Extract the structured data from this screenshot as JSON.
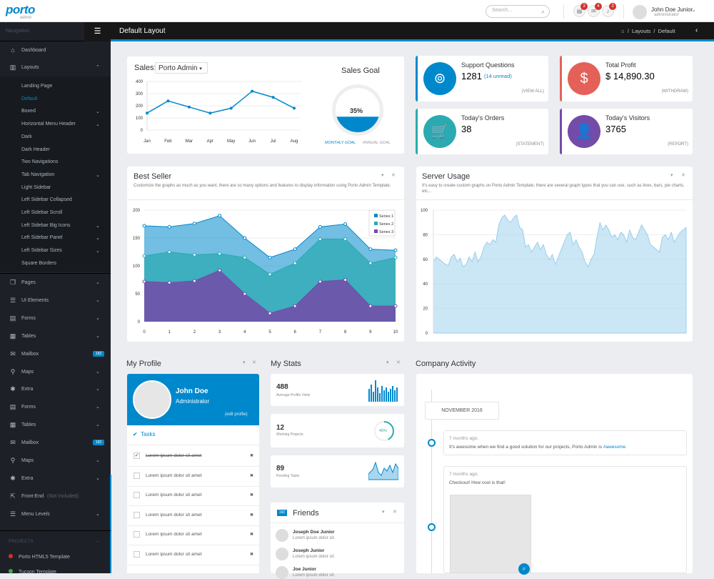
{
  "brand": {
    "name": "porto",
    "sub": "admin",
    "color": "#0088cc"
  },
  "topbar": {
    "search_placeholder": "Search...",
    "notifications": [
      {
        "icon": "tasks-icon",
        "glyph": "▤",
        "count": "3"
      },
      {
        "icon": "envelope-icon",
        "glyph": "✉",
        "count": "4"
      },
      {
        "icon": "bell-icon",
        "glyph": "🔔",
        "count": "3"
      }
    ],
    "user": {
      "name": "John Doe Junior",
      "role": "administrator"
    }
  },
  "sidebar": {
    "heading": "Navigation",
    "items_top": [
      {
        "icon": "home-icon",
        "glyph": "⌂",
        "label": "Dashboard"
      },
      {
        "icon": "columns-icon",
        "glyph": "▥",
        "label": "Layouts"
      }
    ],
    "sub_items": [
      {
        "label": "Landing Page",
        "chev": ""
      },
      {
        "label": "Default",
        "chev": "",
        "active": true
      },
      {
        "label": "Boxed",
        "chev": "⌄"
      },
      {
        "label": "Horizontal Menu Header",
        "chev": "⌄"
      },
      {
        "label": "Dark",
        "chev": ""
      },
      {
        "label": "Dark Header",
        "chev": ""
      },
      {
        "label": "Two Navigations",
        "chev": ""
      },
      {
        "label": "Tab Navigation",
        "chev": "⌄"
      },
      {
        "label": "Light Sidebar",
        "chev": ""
      },
      {
        "label": "Left Sidebar Collapsed",
        "chev": ""
      },
      {
        "label": "Left Sidebar Scroll",
        "chev": ""
      },
      {
        "label": "Left Sidebar Big Icons",
        "chev": "⌄"
      },
      {
        "label": "Left Sidebar Panel",
        "chev": "⌄"
      },
      {
        "label": "Left Sidebar Sizes",
        "chev": "⌄"
      },
      {
        "label": "Square Borders",
        "chev": ""
      }
    ],
    "items": [
      {
        "icon": "copy-icon",
        "glyph": "❐",
        "label": "Pages",
        "chev": "⌄"
      },
      {
        "icon": "list-icon",
        "glyph": "☰",
        "label": "UI Elements",
        "chev": "⌄"
      },
      {
        "icon": "forms-icon",
        "glyph": "▤",
        "label": "Forms",
        "chev": "⌄"
      },
      {
        "icon": "table-icon",
        "glyph": "▦",
        "label": "Tables",
        "chev": "⌄"
      },
      {
        "icon": "mail-icon",
        "glyph": "✉",
        "label": "Mailbox",
        "badge": "182"
      },
      {
        "icon": "map-marker-icon",
        "glyph": "⚲",
        "label": "Maps",
        "chev": "⌄"
      },
      {
        "icon": "asterisk-icon",
        "glyph": "✱",
        "label": "Extra",
        "chev": "⌄"
      },
      {
        "icon": "forms-icon",
        "glyph": "▤",
        "label": "Forms",
        "chev": "⌄"
      },
      {
        "icon": "table-icon",
        "glyph": "▦",
        "label": "Tables",
        "chev": "⌄"
      },
      {
        "icon": "mail-icon",
        "glyph": "✉",
        "label": "Mailbox",
        "badge": "182"
      },
      {
        "icon": "map-marker-icon",
        "glyph": "⚲",
        "label": "Maps",
        "chev": "⌄"
      },
      {
        "icon": "asterisk-icon",
        "glyph": "✱",
        "label": "Extra",
        "chev": "⌄"
      },
      {
        "icon": "external-link-icon",
        "glyph": "⇱",
        "label": "Front-End",
        "note": "(Not Included)"
      },
      {
        "icon": "align-left-icon",
        "glyph": "☰",
        "label": "Menu Levels",
        "chev": "⌄"
      }
    ],
    "projects_heading": "PROJECTS",
    "projects": [
      {
        "label": "Porto HTML5 Template",
        "color": "#d2322d"
      },
      {
        "label": "Tucson Template",
        "color": "#47a447"
      }
    ]
  },
  "page": {
    "title": "Default Layout",
    "breadcrumb": [
      "Layouts",
      "Default"
    ]
  },
  "sales": {
    "label": "Sales:",
    "selected": "Porto Admin",
    "goal_title": "Sales Goal",
    "goal_pct": "35%",
    "goal_value": 35,
    "tabs": [
      "MONTHLY GOAL",
      "ANNUAL GOAL"
    ]
  },
  "stats": [
    {
      "title": "Support Questions",
      "value": "1281",
      "extra": "(14 unread)",
      "link": "(VIEW ALL)",
      "color": "#0088cc",
      "icon": "life-ring-icon",
      "glyph": "⊚"
    },
    {
      "title": "Total Profit",
      "value": "$ 14,890.30",
      "extra": "",
      "link": "(WITHDRAW)",
      "color": "#e36159",
      "icon": "dollar-icon",
      "glyph": "$"
    },
    {
      "title": "Today's Orders",
      "value": "38",
      "extra": "",
      "link": "(STATEMENT)",
      "color": "#2baab1",
      "icon": "cart-icon",
      "glyph": "🛒"
    },
    {
      "title": "Today's Visitors",
      "value": "3765",
      "extra": "",
      "link": "(REPORT)",
      "color": "#734ba9",
      "icon": "user-icon",
      "glyph": "👤"
    }
  ],
  "best_seller": {
    "title": "Best Seller",
    "desc": "Customize the graphs as much as you want, there are so many options and features to display information using Porto Admin Template."
  },
  "server_usage": {
    "title": "Server Usage",
    "desc": "It's easy to create custom graphs on Porto Admin Template, there are several graph types that you can use, such as lines, bars, pie charts, etc..."
  },
  "profile": {
    "title": "My Profile",
    "name": "John Doe",
    "role": "Administrator",
    "edit": "(edit profile)",
    "tasks_title": "Tasks",
    "tasks": [
      {
        "text": "Lorem ipsum dolor sit amet",
        "done": true
      },
      {
        "text": "Lorem ipsum dolor sit amet",
        "done": false
      },
      {
        "text": "Lorem ipsum dolor sit amet",
        "done": false
      },
      {
        "text": "Lorem ipsum dolor sit amet",
        "done": false
      },
      {
        "text": "Lorem ipsum dolor sit amet",
        "done": false
      },
      {
        "text": "Lorem ipsum dolor sit amet",
        "done": false
      }
    ]
  },
  "my_stats": {
    "title": "My Stats",
    "items": [
      {
        "value": "488",
        "label": "Average Profile Visits"
      },
      {
        "value": "12",
        "label": "Working Projects",
        "pct": "45%"
      },
      {
        "value": "89",
        "label": "Pending Tasks"
      }
    ]
  },
  "friends": {
    "title": "Friends",
    "badge": "192",
    "items": [
      {
        "name": "Joseph Doe Junior",
        "text": "Lorem ipsum dolor sit."
      },
      {
        "name": "Joseph Junior",
        "text": "Lorem ipsum dolor sit."
      },
      {
        "name": "Joe Junior",
        "text": "Lorem ipsum dolor sit."
      }
    ]
  },
  "activity": {
    "title": "Company Activity",
    "month": "NOVEMBER 2016",
    "posts": [
      {
        "time": "7 months ago.",
        "text": "It's awesome when we find a good solution for our projects, Porto Admin is ",
        "tag": "#awesome"
      },
      {
        "time": "7 months ago.",
        "text": "Checkout! How cool is that!"
      }
    ]
  },
  "chart_data": [
    {
      "type": "line",
      "title": "Sales",
      "categories": [
        "Jan",
        "Feb",
        "Mar",
        "Apr",
        "May",
        "Jun",
        "Jul",
        "Aug"
      ],
      "values": [
        140,
        240,
        190,
        140,
        180,
        320,
        270,
        180
      ],
      "ylim": [
        0,
        400
      ],
      "yticks": [
        0,
        100,
        200,
        300,
        400
      ],
      "color": "#0088cc"
    },
    {
      "type": "area",
      "title": "Best Seller",
      "x": [
        0,
        1,
        2,
        3,
        4,
        5,
        6,
        7,
        8,
        9,
        10
      ],
      "xticks": [
        "0",
        "1",
        "2",
        "3",
        "4",
        "5",
        "6",
        "7",
        "8",
        "9",
        "10"
      ],
      "ylim": [
        0,
        200
      ],
      "yticks": [
        "0",
        "50",
        "100",
        "150",
        "200"
      ],
      "legend": [
        "Series 1",
        "Series 2",
        "Series 3"
      ],
      "series": [
        {
          "name": "Series 1",
          "values": [
            172,
            170,
            176,
            190,
            150,
            115,
            130,
            170,
            175,
            130,
            128
          ],
          "color": "#0088cc"
        },
        {
          "name": "Series 2",
          "values": [
            118,
            125,
            120,
            122,
            115,
            85,
            105,
            148,
            148,
            105,
            115
          ],
          "color": "#2baab1"
        },
        {
          "name": "Series 3",
          "values": [
            72,
            70,
            73,
            92,
            50,
            15,
            28,
            72,
            75,
            28,
            28
          ],
          "color": "#734ba9"
        }
      ]
    },
    {
      "type": "area",
      "title": "Server Usage",
      "ylim": [
        0,
        100
      ],
      "yticks": [
        "0",
        "20",
        "40",
        "60",
        "80",
        "100"
      ],
      "color": "#a9d6ee",
      "values": [
        58,
        62,
        60,
        58,
        56,
        55,
        62,
        64,
        58,
        61,
        54,
        56,
        62,
        58,
        66,
        58,
        62,
        70,
        74,
        72,
        76,
        74,
        88,
        94,
        96,
        92,
        90,
        94,
        96,
        86,
        84,
        70,
        72,
        66,
        70,
        74,
        68,
        72,
        64,
        60,
        64,
        56,
        62,
        68,
        74,
        80,
        82,
        72,
        76,
        70,
        66,
        58,
        54,
        60,
        64,
        78,
        90,
        84,
        88,
        84,
        78,
        80,
        76,
        82,
        80,
        74,
        84,
        78,
        76,
        82,
        88,
        84,
        80,
        72,
        70,
        68,
        66,
        78,
        80,
        76,
        82,
        74,
        78,
        82,
        84,
        86
      ]
    }
  ]
}
